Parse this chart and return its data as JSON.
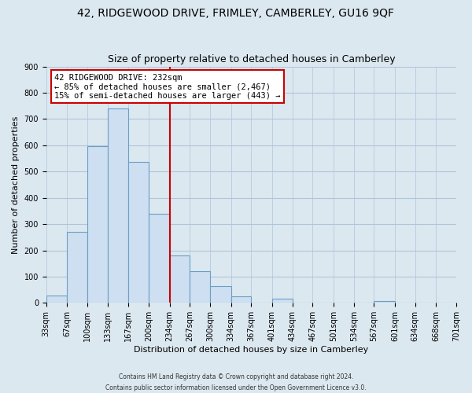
{
  "title_line1": "42, RIDGEWOOD DRIVE, FRIMLEY, CAMBERLEY, GU16 9QF",
  "title_line2": "Size of property relative to detached houses in Camberley",
  "xlabel": "Distribution of detached houses by size in Camberley",
  "ylabel": "Number of detached properties",
  "footer_line1": "Contains HM Land Registry data © Crown copyright and database right 2024.",
  "footer_line2": "Contains public sector information licensed under the Open Government Licence v3.0.",
  "bar_edges": [
    33,
    67,
    100,
    133,
    167,
    200,
    234,
    267,
    300,
    334,
    367,
    401,
    434,
    467,
    501,
    534,
    567,
    601,
    634,
    668,
    701
  ],
  "bar_heights": [
    27,
    270,
    595,
    740,
    538,
    338,
    180,
    120,
    65,
    25,
    0,
    15,
    0,
    0,
    0,
    0,
    8,
    0,
    0,
    0
  ],
  "bar_color": "#cddff0",
  "bar_edge_color": "#6b9ec8",
  "vline_x": 234,
  "vline_color": "#cc0000",
  "annotation_line1": "42 RIDGEWOOD DRIVE: 232sqm",
  "annotation_line2": "← 85% of detached houses are smaller (2,467)",
  "annotation_line3": "15% of semi-detached houses are larger (443) →",
  "annotation_box_facecolor": "#ffffff",
  "annotation_box_edgecolor": "#cc0000",
  "ylim": [
    0,
    900
  ],
  "yticks": [
    0,
    100,
    200,
    300,
    400,
    500,
    600,
    700,
    800,
    900
  ],
  "tick_labels": [
    "33sqm",
    "67sqm",
    "100sqm",
    "133sqm",
    "167sqm",
    "200sqm",
    "234sqm",
    "267sqm",
    "300sqm",
    "334sqm",
    "367sqm",
    "401sqm",
    "434sqm",
    "467sqm",
    "501sqm",
    "534sqm",
    "567sqm",
    "601sqm",
    "634sqm",
    "668sqm",
    "701sqm"
  ],
  "background_color": "#dce8f0",
  "plot_bg_color": "#dce8f0",
  "grid_color": "#b0c4d8",
  "title_fontsize": 10,
  "subtitle_fontsize": 9,
  "axis_label_fontsize": 8,
  "tick_fontsize": 7,
  "footer_fontsize": 5.5
}
